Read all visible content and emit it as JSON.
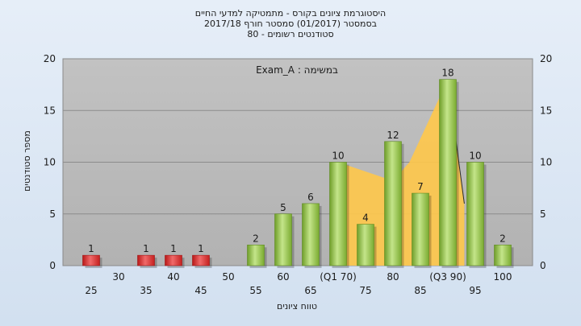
{
  "chart_data": {
    "type": "bar",
    "title_lines": [
      "היסטוגרמת ציונים בקורס - מתמטיקה למדעי החיים",
      "בסמסטר  (01/2017)  סמסטר חורף  2017/18",
      "סטודנטים רשומים - 80"
    ],
    "annotation": "במשימה : Exam_A",
    "ylabel": "מספר סטודנטים",
    "xlabel": "טווח ציונים",
    "ylim": [
      0,
      20
    ],
    "yticks": [
      0,
      5,
      10,
      15,
      20
    ],
    "x_tick_labels": [
      {
        "x": 25,
        "label": "25"
      },
      {
        "x": 30,
        "label": "30"
      },
      {
        "x": 35,
        "label": "35"
      },
      {
        "x": 40,
        "label": "40"
      },
      {
        "x": 45,
        "label": "45"
      },
      {
        "x": 50,
        "label": "50"
      },
      {
        "x": 55,
        "label": "55"
      },
      {
        "x": 60,
        "label": "60"
      },
      {
        "x": 65,
        "label": "65"
      },
      {
        "x": 70,
        "label": "(Q1 70)"
      },
      {
        "x": 75,
        "label": "75"
      },
      {
        "x": 80,
        "label": "80"
      },
      {
        "x": 85,
        "label": "85"
      },
      {
        "x": 90,
        "label": "(Q3 90)"
      },
      {
        "x": 95,
        "label": "95"
      },
      {
        "x": 100,
        "label": "100"
      }
    ],
    "bars": [
      {
        "x": 25,
        "value": 1,
        "color": "#dd2a2a"
      },
      {
        "x": 35,
        "value": 1,
        "color": "#dd2a2a"
      },
      {
        "x": 40,
        "value": 1,
        "color": "#dd2a2a"
      },
      {
        "x": 45,
        "value": 1,
        "color": "#dd2a2a"
      },
      {
        "x": 55,
        "value": 2,
        "color": "#8cc43c"
      },
      {
        "x": 60,
        "value": 5,
        "color": "#8cc43c"
      },
      {
        "x": 65,
        "value": 6,
        "color": "#8cc43c"
      },
      {
        "x": 70,
        "value": 10,
        "color": "#8cc43c"
      },
      {
        "x": 75,
        "value": 4,
        "color": "#8cc43c"
      },
      {
        "x": 80,
        "value": 12,
        "color": "#8cc43c"
      },
      {
        "x": 85,
        "value": 7,
        "color": "#8cc43c"
      },
      {
        "x": 90,
        "value": 18,
        "color": "#8cc43c"
      },
      {
        "x": 95,
        "value": 10,
        "color": "#8cc43c"
      },
      {
        "x": 100,
        "value": 2,
        "color": "#8cc43c"
      }
    ],
    "area_band": {
      "color": "#ffc84a",
      "points": [
        [
          70,
          10
        ],
        [
          80,
          8.2
        ],
        [
          83,
          10
        ],
        [
          90,
          18
        ],
        [
          93,
          6
        ]
      ]
    },
    "grid": true,
    "plot_background": "#b9b9b9"
  }
}
